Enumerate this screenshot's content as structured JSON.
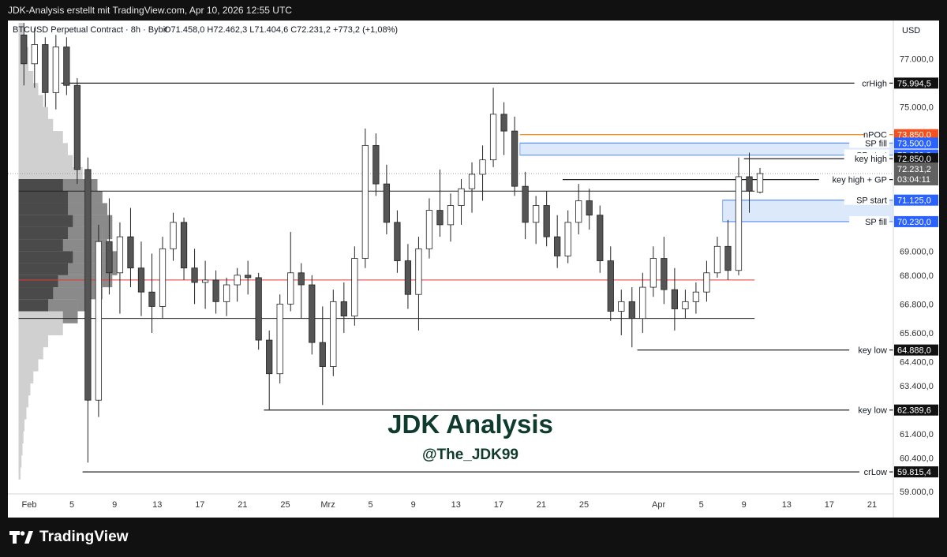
{
  "header": {
    "caption": "JDK-Analysis erstellt mit TradingView.com, Apr 10, 2026 12:55 UTC"
  },
  "chart_info": {
    "symbol_line": "BTCUSD Perpetual Contract · 8h · Bybit",
    "ohlc": "O71.458,0  H72.462,3  L71.404,6  C72.231,2  +773,2 (+1,08%)",
    "currency": "USD"
  },
  "watermark": {
    "title": "JDK Analysis",
    "handle": "@The_JDK99",
    "color": "#0f3b2e"
  },
  "footer": {
    "brand": "TradingView"
  },
  "colors": {
    "background": "#ffffff",
    "bull_candle": "#ffffff",
    "bear_candle": "#555555",
    "candle_border": "#222222",
    "level_line": "#222222",
    "poc_line": "#e53935",
    "npoc_line": "#f57c00",
    "zone_fill": "#dbe9fb",
    "zone_border": "#5b8ff9",
    "badge_dark": "#111111",
    "badge_blue": "#2962ff",
    "badge_orange": "#f4511e",
    "badge_price": "#616161"
  },
  "chart_data": {
    "type": "candlestick",
    "instrument": "BTCUSD Perpetual Contract",
    "timeframe": "8h",
    "exchange": "Bybit",
    "ylim": [
      58900,
      78600
    ],
    "y_ticks": [
      "77.000,0",
      "75.000,0",
      "69.000,0",
      "68.000,0",
      "66.800,0",
      "65.600,0",
      "64.400,0",
      "63.400,0",
      "61.400,0",
      "60.400,0",
      "59.000,0"
    ],
    "y_tick_values": [
      77000,
      75000,
      69000,
      68000,
      66800,
      65600,
      64400,
      63400,
      61400,
      60400,
      59000
    ],
    "x_ticks": [
      "Feb",
      "5",
      "9",
      "13",
      "17",
      "21",
      "25",
      "Mrz",
      "5",
      "9",
      "13",
      "17",
      "21",
      "25",
      "Apr",
      "5",
      "9",
      "13",
      "17",
      "21"
    ],
    "x_tick_dates": [
      "2026-02-01",
      "2026-02-05",
      "2026-02-09",
      "2026-02-13",
      "2026-02-17",
      "2026-02-21",
      "2026-02-25",
      "2026-03-01",
      "2026-03-05",
      "2026-03-09",
      "2026-03-13",
      "2026-03-17",
      "2026-03-21",
      "2026-03-25",
      "2026-04-01",
      "2026-04-05",
      "2026-04-09",
      "2026-04-13",
      "2026-04-17",
      "2026-04-21"
    ],
    "x_range": [
      "2026-01-30",
      "2026-04-23"
    ],
    "last_candle": {
      "open": 71458.0,
      "high": 72462.3,
      "low": 71404.6,
      "close": 72231.2,
      "change": "+773,2 (+1,08%)"
    },
    "countdown": "03:04:11",
    "levels": [
      {
        "label": "crHigh",
        "price": 75994.5,
        "badge": "75.994,5",
        "start": "2026-02-04",
        "style": "dark"
      },
      {
        "label": "nPOC",
        "price": 73850.0,
        "badge": "73.850,0",
        "start": "2026-03-19",
        "style": "orange"
      },
      {
        "label": "SP fill",
        "price": 73500.0,
        "badge": "73.500,0",
        "start": "2026-03-19",
        "style": "blue"
      },
      {
        "label": "SP start",
        "price": 73000.0,
        "badge": "73.000,0",
        "start": "2026-03-19",
        "style": "blue"
      },
      {
        "label": "key high",
        "price": 72850.0,
        "badge": "72.850,0",
        "start": "2026-04-09",
        "style": "dark"
      },
      {
        "label": "key high + GP",
        "price": 71980.0,
        "badge": "71.980,0",
        "start": "2026-03-23",
        "style": "dark"
      },
      {
        "label": "SP start",
        "price": 71125.0,
        "badge": "71.125,0",
        "start": "2026-04-07",
        "style": "blue"
      },
      {
        "label": "SP fill",
        "price": 70230.0,
        "badge": "70.230,0",
        "start": "2026-04-07",
        "style": "blue"
      },
      {
        "label": "key low",
        "price": 64888.0,
        "badge": "64.888,0",
        "start": "2026-03-30",
        "style": "dark"
      },
      {
        "label": "key low",
        "price": 62389.6,
        "badge": "62.389,6",
        "start": "2026-02-23",
        "style": "dark"
      },
      {
        "label": "crLow",
        "price": 59815.4,
        "badge": "59.815,4",
        "start": "2026-02-06",
        "style": "dark"
      }
    ],
    "range_lines": [
      {
        "name": "range high",
        "price": 71500.0,
        "from": "2026-01-31",
        "to": "2026-04-10"
      },
      {
        "name": "poc",
        "price": 67800.0,
        "from": "2026-01-31",
        "to": "2026-04-10"
      },
      {
        "name": "range low",
        "price": 66200.0,
        "from": "2026-01-31",
        "to": "2026-04-10"
      }
    ],
    "zones": [
      {
        "name": "SP upper",
        "top": 73500.0,
        "bottom": 73000.0,
        "from": "2026-03-19",
        "to": "2026-04-23"
      },
      {
        "name": "SP lower",
        "top": 71125.0,
        "bottom": 70230.0,
        "from": "2026-04-07",
        "to": "2026-04-23"
      }
    ],
    "volume_profile": {
      "from": "2026-01-31",
      "prices": [
        78000,
        77000,
        76000,
        75500,
        75000,
        74500,
        74000,
        73500,
        73000,
        72500,
        72000,
        71500,
        71000,
        70500,
        70000,
        69500,
        69000,
        68500,
        68000,
        67500,
        67000,
        66500,
        66000,
        65500,
        65000,
        64500,
        64000,
        63500,
        63000,
        62500,
        62000,
        61500,
        61000,
        60500,
        60000
      ],
      "total": [
        0.05,
        0.1,
        0.15,
        0.2,
        0.25,
        0.3,
        0.35,
        0.45,
        0.5,
        0.55,
        0.65,
        0.8,
        0.85,
        0.9,
        0.95,
        0.85,
        0.9,
        1.0,
        0.95,
        0.85,
        0.7,
        0.6,
        0.45,
        0.3,
        0.25,
        0.2,
        0.15,
        0.12,
        0.1,
        0.08,
        0.06,
        0.05,
        0.04,
        0.03,
        0.02
      ],
      "value_area": [
        0,
        0,
        0,
        0,
        0,
        0,
        0,
        0,
        0,
        0,
        0,
        0.8,
        0.85,
        0.9,
        0.95,
        0.85,
        0.9,
        1.0,
        0.95,
        0.85,
        0.7,
        0.6,
        0,
        0,
        0,
        0,
        0,
        0,
        0,
        0,
        0,
        0,
        0,
        0,
        0
      ],
      "series_b": [
        0,
        0,
        0,
        0,
        0,
        0,
        0,
        0,
        0,
        0,
        0,
        0.45,
        0.5,
        0.5,
        0.55,
        0.5,
        0.45,
        0.55,
        0.5,
        0.4,
        0.35,
        0.3,
        0,
        0,
        0,
        0,
        0,
        0,
        0,
        0,
        0,
        0,
        0,
        0,
        0
      ]
    },
    "candles": [
      [
        "2026-01-31",
        78000,
        78500,
        75900,
        76800
      ],
      [
        "2026-02-01",
        76800,
        78300,
        75800,
        77600
      ],
      [
        "2026-02-02",
        77600,
        77900,
        75000,
        75600
      ],
      [
        "2026-02-03",
        75600,
        78000,
        74900,
        77500
      ],
      [
        "2026-02-04",
        77500,
        77900,
        75500,
        75900
      ],
      [
        "2026-02-05",
        75900,
        76200,
        71800,
        72400
      ],
      [
        "2026-02-06",
        72400,
        72900,
        60200,
        62800
      ],
      [
        "2026-02-07",
        62800,
        70100,
        62100,
        69400
      ],
      [
        "2026-02-08",
        69400,
        71200,
        67200,
        68100
      ],
      [
        "2026-02-09",
        68100,
        70200,
        66400,
        69600
      ],
      [
        "2026-02-10",
        69600,
        70800,
        67500,
        68300
      ],
      [
        "2026-02-11",
        68300,
        69400,
        66300,
        67300
      ],
      [
        "2026-02-12",
        67300,
        68900,
        65600,
        66700
      ],
      [
        "2026-02-13",
        66700,
        69600,
        66200,
        69100
      ],
      [
        "2026-02-14",
        69100,
        70600,
        68600,
        70200
      ],
      [
        "2026-02-15",
        70200,
        70400,
        67800,
        68300
      ],
      [
        "2026-02-16",
        68300,
        69100,
        66800,
        67700
      ],
      [
        "2026-02-17",
        67700,
        68600,
        66600,
        67800
      ],
      [
        "2026-02-18",
        67800,
        68200,
        66400,
        66900
      ],
      [
        "2026-02-19",
        66900,
        67900,
        66300,
        67600
      ],
      [
        "2026-02-20",
        67600,
        68300,
        66900,
        68000
      ],
      [
        "2026-02-21",
        68000,
        68600,
        67200,
        67900
      ],
      [
        "2026-02-22",
        67900,
        68100,
        64900,
        65300
      ],
      [
        "2026-02-23",
        65300,
        65700,
        62400,
        63900
      ],
      [
        "2026-02-24",
        63900,
        67200,
        63500,
        66800
      ],
      [
        "2026-02-25",
        66800,
        69800,
        66500,
        68100
      ],
      [
        "2026-02-26",
        68100,
        68500,
        66200,
        67600
      ],
      [
        "2026-02-27",
        67600,
        68000,
        64700,
        65200
      ],
      [
        "2026-02-28",
        65200,
        66700,
        62600,
        64200
      ],
      [
        "2026-03-01",
        64200,
        67400,
        63800,
        66900
      ],
      [
        "2026-03-02",
        66900,
        67700,
        65600,
        66300
      ],
      [
        "2026-03-03",
        66300,
        69200,
        65900,
        68700
      ],
      [
        "2026-03-04",
        68700,
        74100,
        68300,
        73400
      ],
      [
        "2026-03-05",
        73400,
        73900,
        71300,
        71800
      ],
      [
        "2026-03-06",
        71800,
        72600,
        69700,
        70200
      ],
      [
        "2026-03-07",
        70200,
        70700,
        68100,
        68600
      ],
      [
        "2026-03-08",
        68600,
        69300,
        66600,
        67200
      ],
      [
        "2026-03-09",
        67200,
        69600,
        65700,
        69100
      ],
      [
        "2026-03-10",
        69100,
        71200,
        68700,
        70700
      ],
      [
        "2026-03-11",
        70700,
        72400,
        69600,
        70100
      ],
      [
        "2026-03-12",
        70100,
        71400,
        69400,
        70900
      ],
      [
        "2026-03-13",
        70900,
        72000,
        70100,
        71600
      ],
      [
        "2026-03-14",
        71600,
        72700,
        70600,
        72200
      ],
      [
        "2026-03-15",
        72200,
        73400,
        71100,
        72800
      ],
      [
        "2026-03-16",
        72800,
        75800,
        72500,
        74700
      ],
      [
        "2026-03-17",
        74700,
        75200,
        73000,
        74000
      ],
      [
        "2026-03-18",
        74000,
        74600,
        71300,
        71700
      ],
      [
        "2026-03-19",
        71700,
        72300,
        69500,
        70200
      ],
      [
        "2026-03-20",
        70200,
        71300,
        69300,
        70900
      ],
      [
        "2026-03-21",
        70900,
        71500,
        69200,
        69600
      ],
      [
        "2026-03-22",
        69600,
        70500,
        68300,
        68800
      ],
      [
        "2026-03-23",
        68800,
        70700,
        68500,
        70200
      ],
      [
        "2026-03-24",
        70200,
        71800,
        69700,
        71100
      ],
      [
        "2026-03-25",
        71100,
        71600,
        69900,
        70500
      ],
      [
        "2026-03-26",
        70500,
        70900,
        68100,
        68600
      ],
      [
        "2026-03-27",
        68600,
        69200,
        66100,
        66500
      ],
      [
        "2026-03-28",
        66500,
        67400,
        65500,
        66900
      ],
      [
        "2026-03-29",
        66900,
        67500,
        65000,
        66200
      ],
      [
        "2026-03-30",
        66200,
        68100,
        65600,
        67500
      ],
      [
        "2026-03-31",
        67500,
        69200,
        67100,
        68700
      ],
      [
        "2026-04-01",
        68700,
        69600,
        66800,
        67400
      ],
      [
        "2026-04-02",
        67400,
        68300,
        65700,
        66600
      ],
      [
        "2026-04-03",
        66600,
        67400,
        66200,
        66900
      ],
      [
        "2026-04-04",
        66900,
        67700,
        66400,
        67300
      ],
      [
        "2026-04-05",
        67300,
        68600,
        66900,
        68100
      ],
      [
        "2026-04-06",
        68100,
        69600,
        67900,
        69200
      ],
      [
        "2026-04-07",
        69200,
        70300,
        67800,
        68200
      ],
      [
        "2026-04-08",
        68200,
        72900,
        68000,
        72100
      ],
      [
        "2026-04-09",
        72100,
        73100,
        70600,
        71500
      ],
      [
        "2026-04-10",
        71458,
        72462.3,
        71404.6,
        72231.2
      ]
    ]
  }
}
